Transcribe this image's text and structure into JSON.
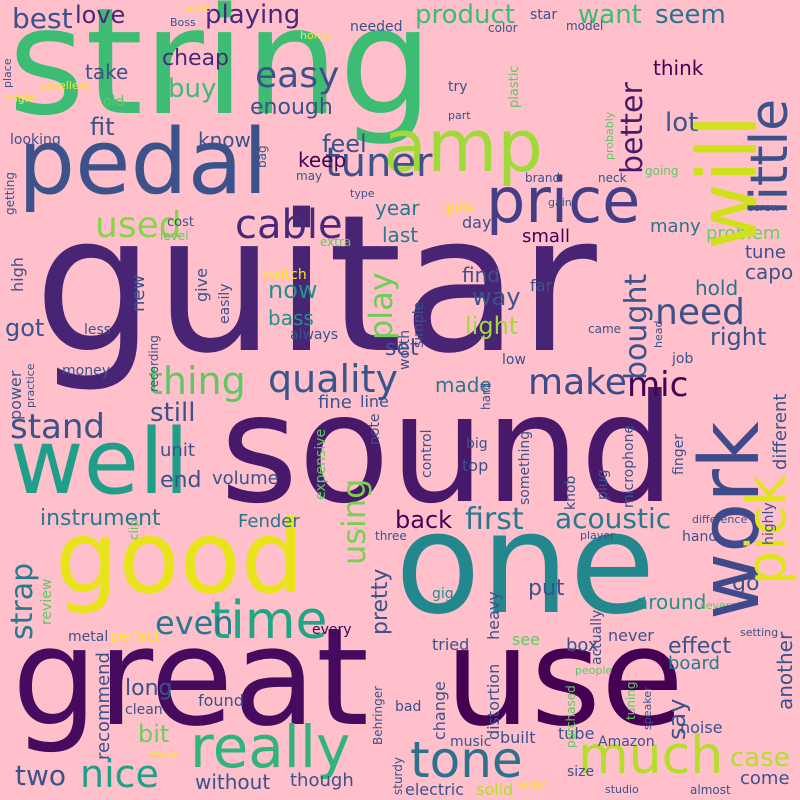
{
  "word_cloud": {
    "background": "#ffc0cb",
    "palette": [
      "#440154",
      "#3b528b",
      "#21918c",
      "#5ec962",
      "#fde725"
    ],
    "words": [
      {
        "text": "guitar",
        "color": "#482475",
        "rotated": false
      },
      {
        "text": "string",
        "color": "#3dbc74",
        "rotated": false
      },
      {
        "text": "sound",
        "color": "#48186a",
        "rotated": false
      },
      {
        "text": "one",
        "color": "#23888e",
        "rotated": false
      },
      {
        "text": "great",
        "color": "#460b5e",
        "rotated": false
      },
      {
        "text": "use",
        "color": "#440154",
        "rotated": false
      },
      {
        "text": "pedal",
        "color": "#3b528b",
        "rotated": false
      },
      {
        "text": "good",
        "color": "#e8e419",
        "rotated": false
      },
      {
        "text": "well",
        "color": "#1f9e89",
        "rotated": false
      },
      {
        "text": "work",
        "color": "#3e4a89",
        "rotated": true
      },
      {
        "text": "will",
        "color": "#d0e11c",
        "rotated": true
      },
      {
        "text": "amp",
        "color": "#a0da39",
        "rotated": false
      },
      {
        "text": "price",
        "color": "#433e85",
        "rotated": false
      },
      {
        "text": "really",
        "color": "#2fb47c",
        "rotated": false
      },
      {
        "text": "much",
        "color": "#b5de2b",
        "rotated": false
      },
      {
        "text": "pick",
        "color": "#e1e41d",
        "rotated": true
      },
      {
        "text": "time",
        "color": "#21a685",
        "rotated": false
      },
      {
        "text": "tone",
        "color": "#2c728e",
        "rotated": false
      },
      {
        "text": "little",
        "color": "#3b528b",
        "rotated": true
      },
      {
        "text": "quality",
        "color": "#39558c",
        "rotated": false
      },
      {
        "text": "cable",
        "color": "#482878",
        "rotated": false
      },
      {
        "text": "tuner",
        "color": "#3b528b",
        "rotated": false
      },
      {
        "text": "used",
        "color": "#86d549",
        "rotated": false
      },
      {
        "text": "easy",
        "color": "#3b528b",
        "rotated": false
      },
      {
        "text": "make",
        "color": "#3e4a89",
        "rotated": false
      },
      {
        "text": "thing",
        "color": "#5ec962",
        "rotated": false
      },
      {
        "text": "nice",
        "color": "#1fa188",
        "rotated": false
      },
      {
        "text": "need",
        "color": "#3b528b",
        "rotated": false
      },
      {
        "text": "better",
        "color": "#481a6c",
        "rotated": true
      },
      {
        "text": "stand",
        "color": "#3b528b",
        "rotated": false
      },
      {
        "text": "mic",
        "color": "#440154",
        "rotated": false
      },
      {
        "text": "bought",
        "color": "#3b528b",
        "rotated": true
      },
      {
        "text": "play",
        "color": "#6ccd5a",
        "rotated": true
      },
      {
        "text": "using",
        "color": "#7ad151",
        "rotated": true
      },
      {
        "text": "strap",
        "color": "#2a788e",
        "rotated": true
      },
      {
        "text": "even",
        "color": "#2a788e",
        "rotated": false
      },
      {
        "text": "acoustic",
        "color": "#2a788e",
        "rotated": false
      },
      {
        "text": "first",
        "color": "#2a788e",
        "rotated": false
      },
      {
        "text": "case",
        "color": "#b5de2b",
        "rotated": false
      },
      {
        "text": "best",
        "color": "#3b528b",
        "rotated": false
      },
      {
        "text": "love",
        "color": "#482878",
        "rotated": false
      },
      {
        "text": "playing",
        "color": "#482878",
        "rotated": false
      },
      {
        "text": "product",
        "color": "#3dbc74",
        "rotated": false
      },
      {
        "text": "want",
        "color": "#3dbc74",
        "rotated": false
      },
      {
        "text": "seem",
        "color": "#2c728e",
        "rotated": false
      },
      {
        "text": "cheap",
        "color": "#482878",
        "rotated": false
      },
      {
        "text": "take",
        "color": "#3b528b",
        "rotated": false
      },
      {
        "text": "buy",
        "color": "#3dbc74",
        "rotated": false
      },
      {
        "text": "look",
        "color": "#482878",
        "rotated": true
      },
      {
        "text": "enough",
        "color": "#3b528b",
        "rotated": false
      },
      {
        "text": "fit",
        "color": "#3b528b",
        "rotated": false
      },
      {
        "text": "lot",
        "color": "#3b528b",
        "rotated": false
      },
      {
        "text": "think",
        "color": "#440154",
        "rotated": false
      },
      {
        "text": "know",
        "color": "#3b528b",
        "rotated": false
      },
      {
        "text": "feel",
        "color": "#3b528b",
        "rotated": false
      },
      {
        "text": "keep",
        "color": "#440154",
        "rotated": false
      },
      {
        "text": "year",
        "color": "#2a788e",
        "rotated": false
      },
      {
        "text": "last",
        "color": "#2a788e",
        "rotated": false
      },
      {
        "text": "small",
        "color": "#440154",
        "rotated": false
      },
      {
        "text": "many",
        "color": "#2c728e",
        "rotated": false
      },
      {
        "text": "problem",
        "color": "#6ccd5a",
        "rotated": false
      },
      {
        "text": "tune",
        "color": "#3b528b",
        "rotated": false
      },
      {
        "text": "capo",
        "color": "#3b528b",
        "rotated": false
      },
      {
        "text": "find",
        "color": "#3b528b",
        "rotated": false
      },
      {
        "text": "way",
        "color": "#3b528b",
        "rotated": false
      },
      {
        "text": "hold",
        "color": "#2c728e",
        "rotated": false
      },
      {
        "text": "right",
        "color": "#3b528b",
        "rotated": false
      },
      {
        "text": "light",
        "color": "#a0da39",
        "rotated": false
      },
      {
        "text": "set",
        "color": "#3b528b",
        "rotated": false
      },
      {
        "text": "now",
        "color": "#21918c",
        "rotated": false
      },
      {
        "text": "bass",
        "color": "#21918c",
        "rotated": false
      },
      {
        "text": "got",
        "color": "#3b528b",
        "rotated": false
      },
      {
        "text": "made",
        "color": "#2a788e",
        "rotated": false
      },
      {
        "text": "still",
        "color": "#3b528b",
        "rotated": false
      },
      {
        "text": "fine",
        "color": "#3b528b",
        "rotated": false
      },
      {
        "text": "line",
        "color": "#3b528b",
        "rotated": false
      },
      {
        "text": "end",
        "color": "#3b528b",
        "rotated": false
      },
      {
        "text": "volume",
        "color": "#3b528b",
        "rotated": false
      },
      {
        "text": "unit",
        "color": "#3b528b",
        "rotated": false
      },
      {
        "text": "instrument",
        "color": "#2a788e",
        "rotated": false
      },
      {
        "text": "back",
        "color": "#440154",
        "rotated": false
      },
      {
        "text": "Fender",
        "color": "#2c728e",
        "rotated": false
      },
      {
        "text": "say",
        "color": "#3b528b",
        "rotated": true
      },
      {
        "text": "effect",
        "color": "#3b528b",
        "rotated": false
      },
      {
        "text": "around",
        "color": "#21918c",
        "rotated": false
      },
      {
        "text": "go",
        "color": "#3b528b",
        "rotated": false
      },
      {
        "text": "recommend",
        "color": "#3b528b",
        "rotated": true
      },
      {
        "text": "long",
        "color": "#3b528b",
        "rotated": false
      },
      {
        "text": "bit",
        "color": "#6ccd5a",
        "rotated": false
      },
      {
        "text": "two",
        "color": "#3b528b",
        "rotated": false
      },
      {
        "text": "without",
        "color": "#3b528b",
        "rotated": false
      },
      {
        "text": "though",
        "color": "#3b528b",
        "rotated": false
      },
      {
        "text": "electric",
        "color": "#3b528b",
        "rotated": false
      },
      {
        "text": "solid",
        "color": "#b5de2b",
        "rotated": false
      },
      {
        "text": "size",
        "color": "#3b528b",
        "rotated": false
      },
      {
        "text": "studio",
        "color": "#3b528b",
        "rotated": false
      },
      {
        "text": "almost",
        "color": "#3b528b",
        "rotated": false
      },
      {
        "text": "come",
        "color": "#3b528b",
        "rotated": false
      },
      {
        "text": "music",
        "color": "#3b528b",
        "rotated": false
      },
      {
        "text": "built",
        "color": "#3b528b",
        "rotated": false
      },
      {
        "text": "tube",
        "color": "#3b528b",
        "rotated": false
      },
      {
        "text": "Amazon",
        "color": "#3b528b",
        "rotated": false
      },
      {
        "text": "noise",
        "color": "#3b528b",
        "rotated": false
      },
      {
        "text": "board",
        "color": "#2a788e",
        "rotated": false
      },
      {
        "text": "another",
        "color": "#3b528b",
        "rotated": true
      },
      {
        "text": "never",
        "color": "#3b528b",
        "rotated": false
      },
      {
        "text": "box",
        "color": "#3b528b",
        "rotated": false
      },
      {
        "text": "see",
        "color": "#5ec962",
        "rotated": false
      },
      {
        "text": "put",
        "color": "#3b528b",
        "rotated": false
      },
      {
        "text": "tried",
        "color": "#3b528b",
        "rotated": false
      },
      {
        "text": "change",
        "color": "#3b528b",
        "rotated": true
      },
      {
        "text": "heavy",
        "color": "#3b528b",
        "rotated": true
      },
      {
        "text": "distortion",
        "color": "#3b528b",
        "rotated": true
      },
      {
        "text": "pretty",
        "color": "#3b528b",
        "rotated": true
      },
      {
        "text": "every",
        "color": "#440154",
        "rotated": false
      },
      {
        "text": "found",
        "color": "#3b528b",
        "rotated": false
      },
      {
        "text": "clean",
        "color": "#3b528b",
        "rotated": false
      },
      {
        "text": "bad",
        "color": "#3b528b",
        "rotated": false
      },
      {
        "text": "give",
        "color": "#3b528b",
        "rotated": true
      },
      {
        "text": "new",
        "color": "#3b528b",
        "rotated": true
      },
      {
        "text": "switch",
        "color": "#fde725",
        "rotated": false
      },
      {
        "text": "cost",
        "color": "#3b528b",
        "rotated": false
      },
      {
        "text": "level",
        "color": "#5ec962",
        "rotated": false
      },
      {
        "text": "extra",
        "color": "#5ec962",
        "rotated": false
      },
      {
        "text": "day",
        "color": "#3b528b",
        "rotated": false
      },
      {
        "text": "quite",
        "color": "#fde725",
        "rotated": false
      },
      {
        "text": "type",
        "color": "#3b528b",
        "rotated": false
      },
      {
        "text": "far",
        "color": "#3b528b",
        "rotated": false
      },
      {
        "text": "came",
        "color": "#3b528b",
        "rotated": false
      },
      {
        "text": "low",
        "color": "#3b528b",
        "rotated": false
      },
      {
        "text": "job",
        "color": "#3b528b",
        "rotated": false
      },
      {
        "text": "power",
        "color": "#3b528b",
        "rotated": true
      },
      {
        "text": "money",
        "color": "#3b528b",
        "rotated": false
      },
      {
        "text": "practice",
        "color": "#3b528b",
        "rotated": true
      },
      {
        "text": "high",
        "color": "#3b528b",
        "rotated": true
      },
      {
        "text": "less",
        "color": "#3b528b",
        "rotated": false
      },
      {
        "text": "always",
        "color": "#3b528b",
        "rotated": false
      },
      {
        "text": "recording",
        "color": "#3b528b",
        "rotated": true
      },
      {
        "text": "easily",
        "color": "#3b528b",
        "rotated": true
      },
      {
        "text": "worth",
        "color": "#3b528b",
        "rotated": true
      },
      {
        "text": "simple",
        "color": "#3b528b",
        "rotated": true
      },
      {
        "text": "microphone",
        "color": "#3b528b",
        "rotated": true
      },
      {
        "text": "different",
        "color": "#3b528b",
        "rotated": true
      },
      {
        "text": "finger",
        "color": "#3b528b",
        "rotated": true
      },
      {
        "text": "note",
        "color": "#3b528b",
        "rotated": true
      },
      {
        "text": "control",
        "color": "#3b528b",
        "rotated": true
      },
      {
        "text": "hard",
        "color": "#3b528b",
        "rotated": true
      },
      {
        "text": "big",
        "color": "#3b528b",
        "rotated": false
      },
      {
        "text": "top",
        "color": "#3b528b",
        "rotated": false
      },
      {
        "text": "something",
        "color": "#3b528b",
        "rotated": true
      },
      {
        "text": "knob",
        "color": "#3b528b",
        "rotated": true
      },
      {
        "text": "plug",
        "color": "#3b528b",
        "rotated": true
      },
      {
        "text": "expensive",
        "color": "#5ec962",
        "rotated": true
      },
      {
        "text": "metal",
        "color": "#3b528b",
        "rotated": false
      },
      {
        "text": "perfect",
        "color": "#fde725",
        "rotated": false
      },
      {
        "text": "review",
        "color": "#5ec962",
        "rotated": true
      },
      {
        "text": "clip",
        "color": "#5ec962",
        "rotated": true
      },
      {
        "text": "three",
        "color": "#3b528b",
        "rotated": false
      },
      {
        "text": "gig",
        "color": "#21918c",
        "rotated": false
      },
      {
        "text": "people",
        "color": "#5ec962",
        "rotated": false
      },
      {
        "text": "actually",
        "color": "#3b528b",
        "rotated": true
      },
      {
        "text": "purchased",
        "color": "#5ec962",
        "rotated": true
      },
      {
        "text": "tuning",
        "color": "#5ec962",
        "rotated": true
      },
      {
        "text": "speaker",
        "color": "#3b528b",
        "rotated": true
      },
      {
        "text": "Behringer",
        "color": "#3b528b",
        "rotated": true
      },
      {
        "text": "issue",
        "color": "#fde725",
        "rotated": false
      },
      {
        "text": "sturdy",
        "color": "#3b528b",
        "rotated": true
      },
      {
        "text": "happy",
        "color": "#fde725",
        "rotated": false
      },
      {
        "text": "player",
        "color": "#3b528b",
        "rotated": false
      },
      {
        "text": "difference",
        "color": "#3b528b",
        "rotated": false
      },
      {
        "text": "highly",
        "color": "#3b528b",
        "rotated": true
      },
      {
        "text": "hand",
        "color": "#3b528b",
        "rotated": false
      },
      {
        "text": "several",
        "color": "#5ec962",
        "rotated": false
      },
      {
        "text": "setting",
        "color": "#3b528b",
        "rotated": false
      },
      {
        "text": "side",
        "color": "#fde725",
        "rotated": false
      },
      {
        "text": "Boss",
        "color": "#3b528b",
        "rotated": false
      },
      {
        "text": "home",
        "color": "#fde725",
        "rotated": false
      },
      {
        "text": "needed",
        "color": "#3b528b",
        "rotated": false
      },
      {
        "text": "star",
        "color": "#3b528b",
        "rotated": false
      },
      {
        "text": "color",
        "color": "#3b528b",
        "rotated": false
      },
      {
        "text": "model",
        "color": "#3b528b",
        "rotated": false
      },
      {
        "text": "place",
        "color": "#3b528b",
        "rotated": true
      },
      {
        "text": "excellent",
        "color": "#fde725",
        "rotated": false
      },
      {
        "text": "might",
        "color": "#fde725",
        "rotated": false
      },
      {
        "text": "old",
        "color": "#5ec962",
        "rotated": false
      },
      {
        "text": "try",
        "color": "#3b528b",
        "rotated": false
      },
      {
        "text": "plastic",
        "color": "#5ec962",
        "rotated": true
      },
      {
        "text": "part",
        "color": "#3b528b",
        "rotated": false
      },
      {
        "text": "looking",
        "color": "#3b528b",
        "rotated": false
      },
      {
        "text": "bag",
        "color": "#3b528b",
        "rotated": true
      },
      {
        "text": "may",
        "color": "#3b528b",
        "rotated": false
      },
      {
        "text": "getting",
        "color": "#3b528b",
        "rotated": true
      },
      {
        "text": "probably",
        "color": "#5ec962",
        "rotated": true
      },
      {
        "text": "brand",
        "color": "#3b528b",
        "rotated": false
      },
      {
        "text": "neck",
        "color": "#3b528b",
        "rotated": false
      },
      {
        "text": "going",
        "color": "#5ec962",
        "rotated": false
      },
      {
        "text": "gain",
        "color": "#3b528b",
        "rotated": false
      },
      {
        "text": "screw",
        "color": "#3b528b",
        "rotated": false
      },
      {
        "text": "head",
        "color": "#3b528b",
        "rotated": true
      }
    ]
  }
}
